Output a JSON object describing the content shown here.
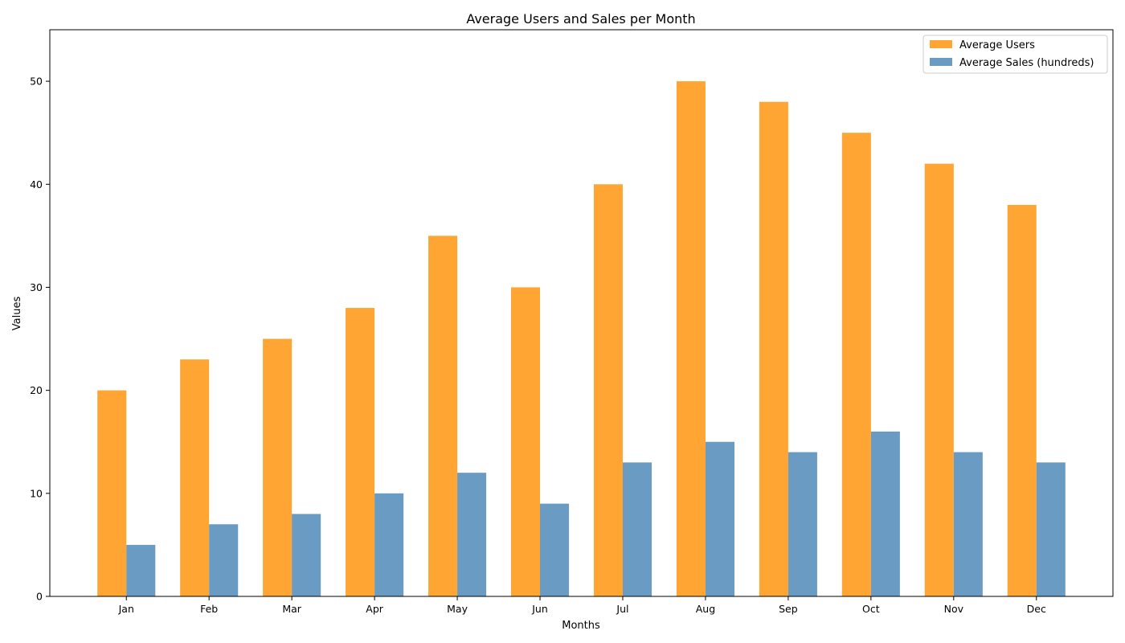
{
  "chart_data": {
    "type": "bar",
    "title": "Average Users and Sales per Month",
    "xlabel": "Months",
    "ylabel": "Values",
    "categories": [
      "Jan",
      "Feb",
      "Mar",
      "Apr",
      "May",
      "Jun",
      "Jul",
      "Aug",
      "Sep",
      "Oct",
      "Nov",
      "Dec"
    ],
    "series": [
      {
        "name": "Average Users",
        "color": "#FFA533",
        "values": [
          20,
          23,
          25,
          28,
          35,
          30,
          40,
          50,
          48,
          45,
          42,
          38
        ]
      },
      {
        "name": "Average Sales (hundreds)",
        "color": "#6A9BC3",
        "values": [
          5,
          7,
          8,
          10,
          12,
          9,
          13,
          15,
          14,
          16,
          14,
          13
        ]
      }
    ],
    "ylim": [
      0,
      55
    ],
    "yticks": [
      0,
      10,
      20,
      30,
      40,
      50
    ],
    "grid": false,
    "legend_position": "top-right"
  }
}
